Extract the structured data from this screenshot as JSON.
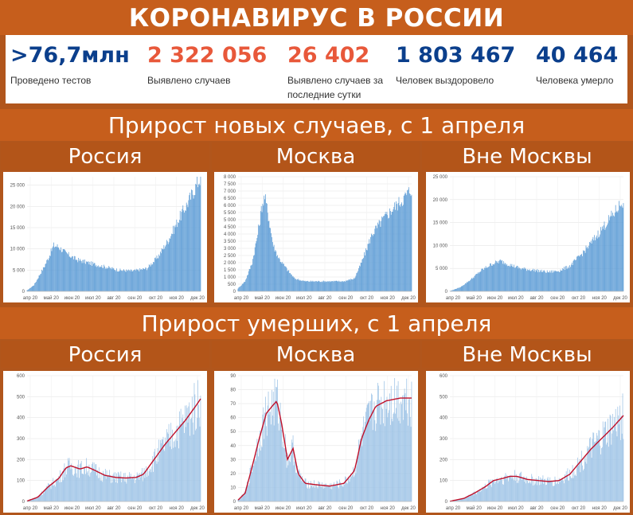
{
  "title": "КОРОНАВИРУС В РОССИИ",
  "colors": {
    "bar": "#5b9bd5",
    "bar_light": "#9dc3e6",
    "line": "#c0102a",
    "stat_blue": "#0b3f8c",
    "stat_red": "#e8583a",
    "orange": "#c65e1c"
  },
  "stats": [
    {
      "value": ">76,7млн",
      "label": "Проведено тестов",
      "color": "#0b3f8c"
    },
    {
      "value": "2 322 056",
      "label": "Выявлено случаев",
      "color": "#e8583a"
    },
    {
      "value": "26 402",
      "label": "Выявлено случаев за последние сутки",
      "color": "#e8583a"
    },
    {
      "value": "1 803 467",
      "label": "Человек выздоровело",
      "color": "#0b3f8c"
    },
    {
      "value": "40 464",
      "label": "Человека умерло",
      "color": "#0b3f8c"
    }
  ],
  "section_cases": {
    "title": "Прирост новых случаев, с 1 апреля"
  },
  "section_deaths": {
    "title": "Прирост умерших, с 1 апреля"
  },
  "columns": [
    "Россия",
    "Москва",
    "Вне Москвы"
  ],
  "chart_data": [
    {
      "type": "bar",
      "region": "Россия",
      "metric": "cases",
      "ylim": [
        0,
        27000
      ],
      "yticks": [
        "0",
        "5 000",
        "10 000",
        "15 000",
        "20 000",
        "25 000"
      ],
      "ytick_values": [
        0,
        5000,
        10000,
        15000,
        20000,
        25000
      ],
      "xticks": [
        "апр 20",
        "май 20",
        "июн 20",
        "июл 20",
        "авг 20",
        "сен 20",
        "окт 20",
        "ноя 20",
        "дек 20"
      ],
      "anchors": [
        [
          0,
          200
        ],
        [
          10,
          1500
        ],
        [
          25,
          6000
        ],
        [
          38,
          10800
        ],
        [
          45,
          10500
        ],
        [
          55,
          9000
        ],
        [
          70,
          7500
        ],
        [
          90,
          6600
        ],
        [
          110,
          5800
        ],
        [
          130,
          5000
        ],
        [
          150,
          4800
        ],
        [
          170,
          5400
        ],
        [
          185,
          8000
        ],
        [
          200,
          12000
        ],
        [
          215,
          17000
        ],
        [
          230,
          21500
        ],
        [
          240,
          25000
        ],
        [
          246,
          27000
        ]
      ]
    },
    {
      "type": "bar",
      "region": "Москва",
      "metric": "cases",
      "ylim": [
        0,
        8000
      ],
      "yticks": [
        "0",
        "500",
        "1 000",
        "1 500",
        "2 000",
        "2 500",
        "3 000",
        "3 500",
        "4 000",
        "4 500",
        "5 000",
        "5 500",
        "6 000",
        "6 500",
        "7 000",
        "7 500",
        "8 000"
      ],
      "ytick_values": [
        0,
        500,
        1000,
        1500,
        2000,
        2500,
        3000,
        3500,
        4000,
        4500,
        5000,
        5500,
        6000,
        6500,
        7000,
        7500,
        8000
      ],
      "xticks": [
        "апр 20",
        "май 20",
        "июн 20",
        "июл 20",
        "авг 20",
        "сен 20",
        "окт 20",
        "ноя 20",
        "дек 20"
      ],
      "anchors": [
        [
          0,
          200
        ],
        [
          10,
          700
        ],
        [
          20,
          2000
        ],
        [
          28,
          4000
        ],
        [
          34,
          6000
        ],
        [
          38,
          6600
        ],
        [
          44,
          5000
        ],
        [
          50,
          3200
        ],
        [
          58,
          2300
        ],
        [
          70,
          1500
        ],
        [
          80,
          900
        ],
        [
          95,
          700
        ],
        [
          120,
          700
        ],
        [
          150,
          700
        ],
        [
          165,
          900
        ],
        [
          175,
          2000
        ],
        [
          190,
          4000
        ],
        [
          205,
          5000
        ],
        [
          220,
          5800
        ],
        [
          235,
          6500
        ],
        [
          246,
          7200
        ]
      ]
    },
    {
      "type": "bar",
      "region": "Вне Москвы",
      "metric": "cases",
      "ylim": [
        0,
        25000
      ],
      "yticks": [
        "0",
        "5 000",
        "10 000",
        "15 000",
        "20 000",
        "25 000"
      ],
      "ytick_values": [
        0,
        5000,
        10000,
        15000,
        20000,
        25000
      ],
      "xticks": [
        "апр 20",
        "май 20",
        "июн 20",
        "июл 20",
        "авг 20",
        "сен 20",
        "окт 20",
        "ноя 20",
        "дек 20"
      ],
      "anchors": [
        [
          0,
          50
        ],
        [
          15,
          900
        ],
        [
          30,
          2600
        ],
        [
          45,
          4600
        ],
        [
          60,
          6000
        ],
        [
          72,
          6600
        ],
        [
          85,
          5800
        ],
        [
          100,
          5000
        ],
        [
          120,
          4600
        ],
        [
          140,
          4200
        ],
        [
          155,
          4500
        ],
        [
          170,
          5500
        ],
        [
          185,
          7800
        ],
        [
          200,
          10500
        ],
        [
          215,
          13500
        ],
        [
          230,
          16500
        ],
        [
          246,
          19800
        ]
      ]
    },
    {
      "type": "bar+line",
      "region": "Россия",
      "metric": "deaths",
      "ylim": [
        0,
        600
      ],
      "yticks": [
        "0",
        "100",
        "200",
        "300",
        "400",
        "500",
        "600"
      ],
      "ytick_values": [
        0,
        100,
        200,
        300,
        400,
        500,
        600
      ],
      "xticks": [
        "апр 20",
        "май 20",
        "июн 20",
        "июл 20",
        "авг 20",
        "сен 20",
        "окт 20",
        "ноя 20",
        "дек 20"
      ],
      "anchors": [
        [
          0,
          2
        ],
        [
          15,
          20
        ],
        [
          30,
          70
        ],
        [
          45,
          110
        ],
        [
          55,
          160
        ],
        [
          62,
          170
        ],
        [
          75,
          155
        ],
        [
          85,
          165
        ],
        [
          95,
          150
        ],
        [
          110,
          125
        ],
        [
          125,
          115
        ],
        [
          140,
          112
        ],
        [
          155,
          115
        ],
        [
          165,
          130
        ],
        [
          180,
          200
        ],
        [
          195,
          270
        ],
        [
          210,
          330
        ],
        [
          225,
          390
        ],
        [
          240,
          460
        ],
        [
          246,
          490
        ]
      ]
    },
    {
      "type": "bar+line",
      "region": "Москва",
      "metric": "deaths",
      "ylim": [
        0,
        90
      ],
      "yticks": [
        "0",
        "10",
        "20",
        "30",
        "40",
        "50",
        "60",
        "70",
        "80",
        "90"
      ],
      "ytick_values": [
        0,
        10,
        20,
        30,
        40,
        50,
        60,
        70,
        80,
        90
      ],
      "xticks": [
        "апр 20",
        "май 20",
        "июн 20",
        "июл 20",
        "авг 20",
        "сен 20",
        "окт 20",
        "ноя 20",
        "дек 20"
      ],
      "anchors": [
        [
          0,
          1
        ],
        [
          10,
          6
        ],
        [
          20,
          25
        ],
        [
          30,
          45
        ],
        [
          40,
          63
        ],
        [
          48,
          68
        ],
        [
          55,
          72
        ],
        [
          62,
          55
        ],
        [
          70,
          30
        ],
        [
          78,
          38
        ],
        [
          85,
          20
        ],
        [
          95,
          13
        ],
        [
          110,
          12
        ],
        [
          130,
          11
        ],
        [
          150,
          13
        ],
        [
          165,
          22
        ],
        [
          175,
          45
        ],
        [
          185,
          58
        ],
        [
          195,
          68
        ],
        [
          210,
          72
        ],
        [
          230,
          74
        ],
        [
          246,
          74
        ]
      ]
    },
    {
      "type": "bar+line",
      "region": "Вне Москвы",
      "metric": "deaths",
      "ylim": [
        0,
        600
      ],
      "yticks": [
        "0",
        "100",
        "200",
        "300",
        "400",
        "500",
        "600"
      ],
      "ytick_values": [
        0,
        100,
        200,
        300,
        400,
        500,
        600
      ],
      "xticks": [
        "апр 20",
        "май 20",
        "июн 20",
        "июл 20",
        "авг 20",
        "сен 20",
        "окт 20",
        "ноя 20",
        "дек 20"
      ],
      "anchors": [
        [
          0,
          1
        ],
        [
          20,
          15
        ],
        [
          35,
          40
        ],
        [
          50,
          70
        ],
        [
          62,
          100
        ],
        [
          75,
          110
        ],
        [
          85,
          120
        ],
        [
          95,
          120
        ],
        [
          110,
          105
        ],
        [
          125,
          100
        ],
        [
          140,
          95
        ],
        [
          155,
          100
        ],
        [
          170,
          130
        ],
        [
          185,
          190
        ],
        [
          200,
          250
        ],
        [
          215,
          300
        ],
        [
          230,
          350
        ],
        [
          246,
          410
        ]
      ]
    }
  ]
}
